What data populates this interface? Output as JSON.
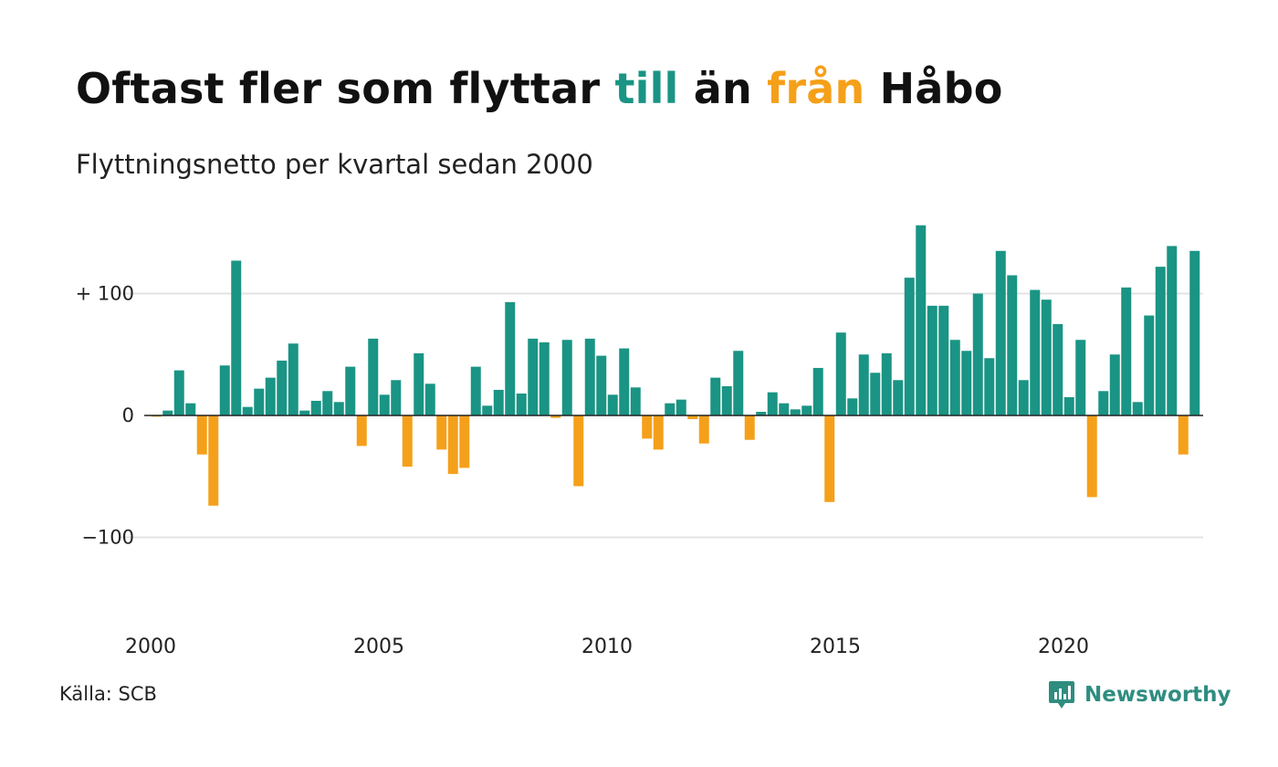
{
  "header": {
    "title_parts": [
      {
        "text": "Oftast fler som flyttar ",
        "color": "#111111"
      },
      {
        "text": "till",
        "color": "#1a9484"
      },
      {
        "text": " än ",
        "color": "#111111"
      },
      {
        "text": "från",
        "color": "#f5a01a"
      },
      {
        "text": " Håbo",
        "color": "#111111"
      }
    ],
    "subtitle": "Flyttningsnetto per kvartal sedan 2000"
  },
  "footer": {
    "source": "Källa: SCB",
    "brand": "Newsworthy",
    "brand_icon": "newsworthy-logo-icon"
  },
  "colors": {
    "positive": "#1a9484",
    "negative": "#f5a01a",
    "gridline": "#e3e3e3",
    "zeroline": "#222222",
    "brand": "#2f8d80"
  },
  "chart_data": {
    "type": "bar",
    "title": "Oftast fler som flyttar till än från Håbo",
    "subtitle": "Flyttningsnetto per kvartal sedan 2000",
    "xlabel": "",
    "ylabel": "",
    "x_start_year": 2000,
    "periods_per_year": 4,
    "x_ticks": [
      "2000",
      "2005",
      "2010",
      "2015",
      "2020"
    ],
    "y_ticks": [
      {
        "value": 100,
        "label": "+ 100"
      },
      {
        "value": 0,
        "label": "0"
      },
      {
        "value": -100,
        "label": "−100"
      }
    ],
    "ylim": [
      -175,
      160
    ],
    "grid": true,
    "legend": "none",
    "values": [
      -1,
      4,
      37,
      10,
      -32,
      -74,
      41,
      127,
      7,
      22,
      31,
      45,
      59,
      4,
      12,
      20,
      11,
      40,
      -25,
      63,
      17,
      29,
      -42,
      51,
      26,
      -28,
      -48,
      -43,
      40,
      8,
      21,
      93,
      18,
      63,
      60,
      -2,
      62,
      -58,
      63,
      49,
      17,
      55,
      23,
      -19,
      -28,
      10,
      13,
      -3,
      -23,
      31,
      24,
      53,
      -20,
      3,
      19,
      10,
      5,
      8,
      39,
      -71,
      68,
      14,
      50,
      35,
      51,
      29,
      113,
      156,
      90,
      90,
      62,
      53,
      100,
      47,
      135,
      115,
      29,
      103,
      95,
      75,
      15,
      62,
      -67,
      20,
      50,
      105,
      11,
      82,
      122,
      139,
      -32,
      135
    ]
  }
}
